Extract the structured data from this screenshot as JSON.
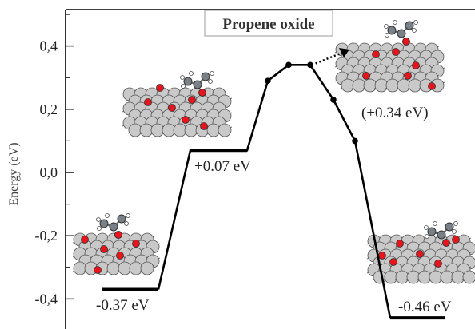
{
  "chart_data": {
    "type": "line",
    "title": "Propene oxide",
    "ylabel": "Energy (eV)",
    "ylim": [
      -0.45,
      0.52
    ],
    "y_ticks": [
      0.4,
      0.2,
      0.0,
      -0.2,
      -0.4
    ],
    "y_tick_labels": [
      "0,4",
      "0,2",
      "0,0",
      "-0,2",
      "-0,4"
    ],
    "levels": [
      {
        "name": "initial",
        "energy": -0.37,
        "label": "-0.37 eV"
      },
      {
        "name": "intermediate",
        "energy": 0.07,
        "label": "+0.07 eV"
      },
      {
        "name": "desorbed",
        "energy": 0.34,
        "label": "(+0.34 eV)"
      },
      {
        "name": "final",
        "energy": -0.46,
        "label": "-0.46 eV"
      }
    ],
    "path_points": [
      {
        "e": 0.29
      },
      {
        "e": 0.34
      },
      {
        "e": 0.34
      },
      {
        "e": 0.23
      },
      {
        "e": 0.1
      }
    ],
    "colors": {
      "line": "#000000",
      "oxygen": "#e8141c",
      "carbon": "#7a8088",
      "surface": "#c9c9c9",
      "hydrogen": "#ffffff"
    }
  }
}
